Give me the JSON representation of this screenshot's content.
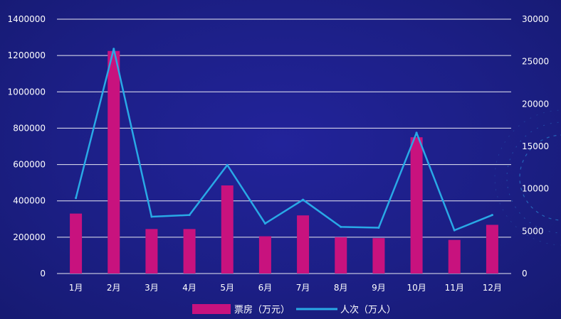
{
  "chart_data": {
    "type": "bar",
    "categories": [
      "1月",
      "2月",
      "3月",
      "4月",
      "5月",
      "6月",
      "7月",
      "8月",
      "9月",
      "10月",
      "11月",
      "12月"
    ],
    "series": [
      {
        "name": "票房（万元）",
        "type": "bar",
        "axis": "left",
        "color": "#c8127e",
        "values": [
          330000,
          1225000,
          245000,
          245000,
          485000,
          205000,
          320000,
          200000,
          195000,
          750000,
          185000,
          268000
        ]
      },
      {
        "name": "人次（万人）",
        "type": "line",
        "axis": "right",
        "color": "#29a9e6",
        "values": [
          8900,
          26500,
          6700,
          6900,
          12800,
          5900,
          8700,
          5500,
          5400,
          16600,
          5100,
          6900
        ]
      }
    ],
    "y_left": {
      "min": 0,
      "max": 1400000,
      "ticks": [
        "0",
        "200000",
        "400000",
        "600000",
        "800000",
        "1000000",
        "1200000",
        "1400000"
      ]
    },
    "y_right": {
      "min": 0,
      "max": 30000,
      "ticks": [
        "0",
        "5000",
        "10000",
        "15000",
        "20000",
        "25000",
        "30000"
      ]
    },
    "grid": true,
    "legend": "bottom-center"
  }
}
